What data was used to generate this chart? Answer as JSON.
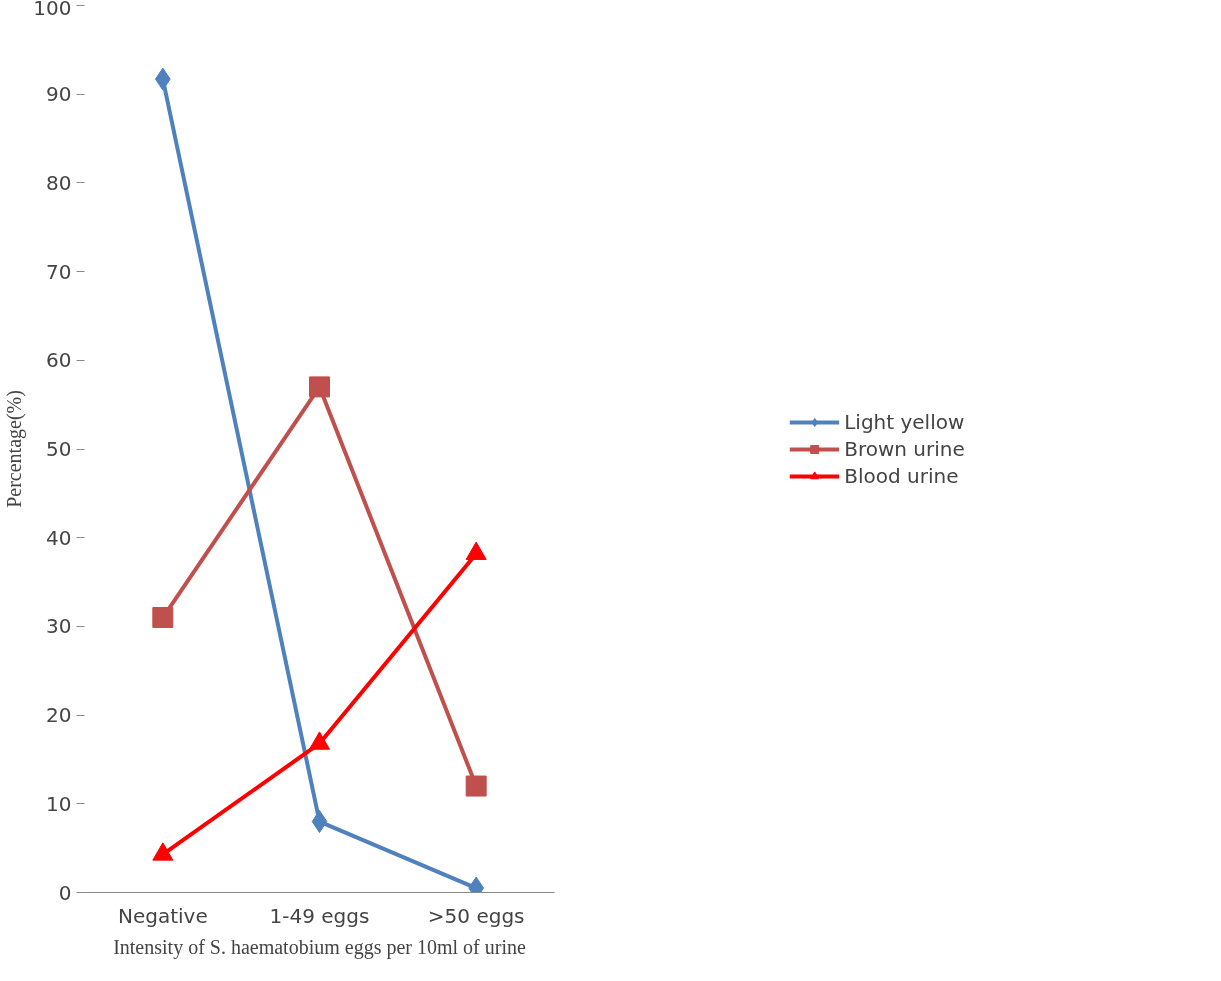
{
  "chart_data": {
    "type": "line",
    "xlabel": "Intensity of S. haematobium eggs per 10ml of urine",
    "ylabel": "Percentage(%)",
    "categories": [
      "Negative",
      "1-49 eggs",
      ">50 eggs"
    ],
    "series": [
      {
        "name": "Light yellow",
        "color": "#4f81bd",
        "marker": "diamond",
        "values": [
          91.7,
          8,
          0.5
        ]
      },
      {
        "name": "Brown urine",
        "color": "#c0504d",
        "marker": "square",
        "values": [
          31,
          57,
          12
        ]
      },
      {
        "name": "Blood urine",
        "color": "#ff0000",
        "marker": "triangle",
        "values": [
          4.3,
          16.8,
          38.2
        ]
      }
    ],
    "ylim": [
      0,
      100
    ],
    "yticks": [
      0,
      10,
      20,
      30,
      40,
      50,
      60,
      70,
      80,
      90,
      100
    ],
    "grid": false,
    "legend": "right",
    "line_style": "solid"
  }
}
